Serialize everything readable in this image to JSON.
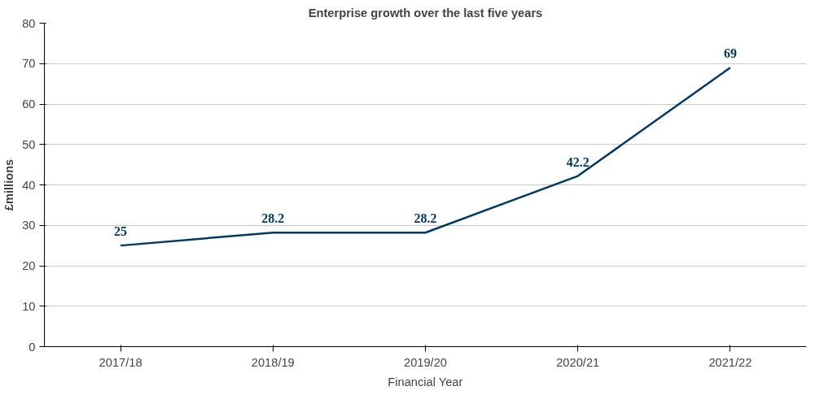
{
  "chart_data": {
    "type": "line",
    "title": "Enterprise growth over the last five years",
    "xlabel": "Financial Year",
    "ylabel": "£millions",
    "categories": [
      "2017/18",
      "2018/19",
      "2019/20",
      "2020/21",
      "2021/22"
    ],
    "series": [
      {
        "color": "#003a63",
        "values": [
          25,
          28.2,
          28.2,
          42.2,
          69
        ]
      }
    ],
    "ylim": [
      0,
      80
    ],
    "yticks": [
      0,
      10,
      20,
      30,
      40,
      50,
      60,
      70,
      80
    ],
    "grid": "y",
    "data_labels": true
  }
}
